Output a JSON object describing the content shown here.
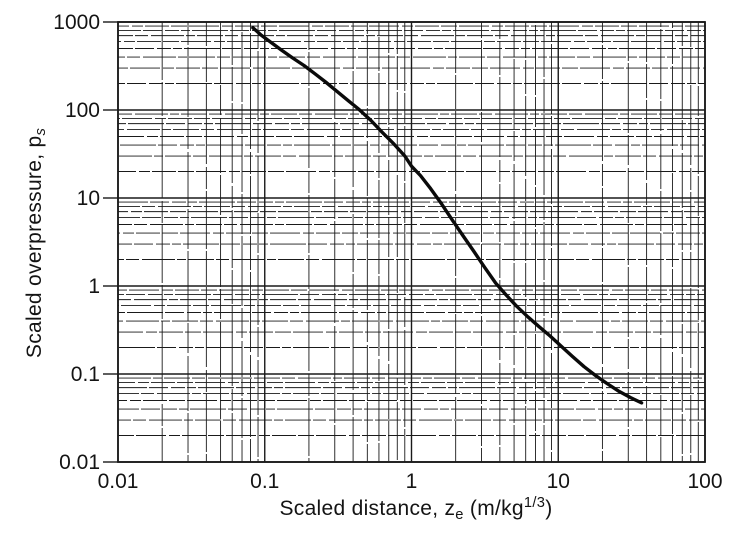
{
  "figure": {
    "background_color": "#ffffff",
    "ink_color": "#1a1a1a",
    "curve_color": "#0a0a0a"
  },
  "chart_data": {
    "type": "line",
    "scale": "log-log",
    "title": "",
    "xlabel": "Scaled distance, z_e (m/kg^1/3)",
    "ylabel": "Scaled overpressure, p_s",
    "xlabel_parts": [
      {
        "text": "Scaled distance, z",
        "script": "normal",
        "italic": false
      },
      {
        "text": "e",
        "script": "sub",
        "italic": false
      },
      {
        "text": " (m/kg",
        "script": "normal",
        "italic": false
      },
      {
        "text": "1/3",
        "script": "sup",
        "italic": false
      },
      {
        "text": ")",
        "script": "normal",
        "italic": false
      }
    ],
    "ylabel_parts": [
      {
        "text": "Scaled overpressure, p",
        "script": "normal",
        "italic": false
      },
      {
        "text": "s",
        "script": "sub",
        "italic": true
      }
    ],
    "xlim": [
      0.01,
      100
    ],
    "ylim": [
      0.01,
      1000
    ],
    "x_ticks": [
      {
        "value": 0.01,
        "label": "0.01"
      },
      {
        "value": 0.1,
        "label": "0.1"
      },
      {
        "value": 1,
        "label": "1"
      },
      {
        "value": 10,
        "label": "10"
      },
      {
        "value": 100,
        "label": "100"
      }
    ],
    "y_ticks": [
      {
        "value": 1000,
        "label": "1000"
      },
      {
        "value": 100,
        "label": "100"
      },
      {
        "value": 10,
        "label": "10"
      },
      {
        "value": 1,
        "label": "1"
      },
      {
        "value": 0.1,
        "label": "0.1"
      },
      {
        "value": 0.01,
        "label": "0.01"
      }
    ],
    "grid": "log major and minor gridlines on both axes, full box frame",
    "legend": "none",
    "series": [
      {
        "name": "scaled overpressure curve",
        "points": [
          [
            0.083,
            860
          ],
          [
            0.095,
            705
          ],
          [
            0.11,
            590
          ],
          [
            0.13,
            480
          ],
          [
            0.155,
            390
          ],
          [
            0.185,
            320
          ],
          [
            0.22,
            258
          ],
          [
            0.26,
            208
          ],
          [
            0.31,
            163
          ],
          [
            0.37,
            128
          ],
          [
            0.44,
            101
          ],
          [
            0.53,
            76
          ],
          [
            0.63,
            56
          ],
          [
            0.76,
            41
          ],
          [
            0.9,
            30
          ],
          [
            1.0,
            23
          ],
          [
            1.15,
            18
          ],
          [
            1.35,
            12.8
          ],
          [
            1.6,
            8.6
          ],
          [
            1.9,
            5.6
          ],
          [
            2.25,
            3.7
          ],
          [
            2.65,
            2.5
          ],
          [
            3.15,
            1.63
          ],
          [
            3.75,
            1.08
          ],
          [
            4.45,
            0.78
          ],
          [
            5.2,
            0.59
          ],
          [
            6.2,
            0.447
          ],
          [
            7.4,
            0.345
          ],
          [
            8.8,
            0.27
          ],
          [
            10.5,
            0.206
          ],
          [
            12.5,
            0.158
          ],
          [
            15,
            0.121
          ],
          [
            18,
            0.096
          ],
          [
            21.5,
            0.078
          ],
          [
            26,
            0.0635
          ],
          [
            31,
            0.054
          ],
          [
            37,
            0.047
          ]
        ]
      }
    ]
  }
}
